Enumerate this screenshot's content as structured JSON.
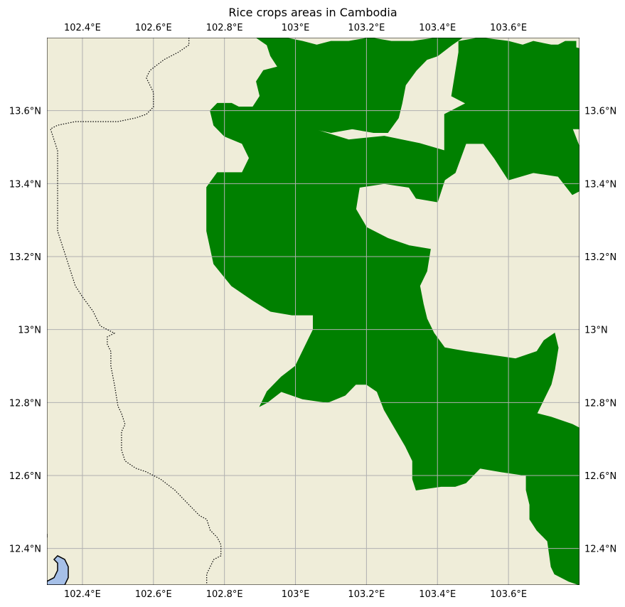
{
  "title": "Rice crops areas in Cambodia",
  "lon_range": [
    102.3,
    103.8
  ],
  "lat_range": [
    12.3,
    13.8
  ],
  "x_ticks": [
    {
      "value": 102.4,
      "label": "102.4°E"
    },
    {
      "value": 102.6,
      "label": "102.6°E"
    },
    {
      "value": 102.8,
      "label": "102.8°E"
    },
    {
      "value": 103.0,
      "label": "103°E"
    },
    {
      "value": 103.2,
      "label": "103.2°E"
    },
    {
      "value": 103.4,
      "label": "103.4°E"
    },
    {
      "value": 103.6,
      "label": "103.6°E"
    }
  ],
  "y_ticks": [
    {
      "value": 12.4,
      "label": "12.4°N"
    },
    {
      "value": 12.6,
      "label": "12.6°N"
    },
    {
      "value": 12.8,
      "label": "12.8°N"
    },
    {
      "value": 13.0,
      "label": "13°N"
    },
    {
      "value": 13.2,
      "label": "13.2°N"
    },
    {
      "value": 13.4,
      "label": "13.4°N"
    },
    {
      "value": 13.6,
      "label": "13.6°N"
    }
  ],
  "gridlines": true,
  "colors": {
    "land": "#efedd9",
    "rice": "#008000",
    "water": "#a6c0e8",
    "grid": "#b0b0b0",
    "border": "#000000"
  },
  "rice_polygons": [
    [
      [
        102.84,
        13.61
      ],
      [
        102.88,
        13.61
      ],
      [
        102.9,
        13.64
      ],
      [
        102.89,
        13.68
      ],
      [
        102.91,
        13.71
      ],
      [
        102.95,
        13.72
      ],
      [
        102.98,
        13.68
      ],
      [
        102.99,
        13.63
      ],
      [
        102.98,
        13.58
      ],
      [
        103.0,
        13.56
      ],
      [
        103.05,
        13.55
      ],
      [
        103.15,
        13.52
      ],
      [
        103.25,
        13.53
      ],
      [
        103.35,
        13.51
      ],
      [
        103.42,
        13.49
      ],
      [
        103.42,
        13.59
      ],
      [
        103.48,
        13.62
      ],
      [
        103.55,
        13.58
      ],
      [
        103.62,
        13.56
      ],
      [
        103.72,
        13.55
      ],
      [
        103.78,
        13.55
      ],
      [
        103.8,
        13.5
      ],
      [
        103.8,
        13.38
      ],
      [
        103.78,
        13.37
      ],
      [
        103.74,
        13.42
      ],
      [
        103.67,
        13.43
      ],
      [
        103.6,
        13.41
      ],
      [
        103.56,
        13.47
      ],
      [
        103.53,
        13.51
      ],
      [
        103.48,
        13.51
      ],
      [
        103.45,
        13.43
      ],
      [
        103.42,
        13.41
      ],
      [
        103.4,
        13.35
      ],
      [
        103.34,
        13.36
      ],
      [
        103.32,
        13.39
      ],
      [
        103.25,
        13.4
      ],
      [
        103.18,
        13.39
      ],
      [
        103.17,
        13.33
      ],
      [
        103.2,
        13.28
      ],
      [
        103.26,
        13.25
      ],
      [
        103.32,
        13.23
      ],
      [
        103.38,
        13.22
      ],
      [
        103.37,
        13.16
      ],
      [
        103.35,
        13.12
      ],
      [
        103.36,
        13.07
      ],
      [
        103.37,
        13.03
      ],
      [
        103.39,
        12.99
      ],
      [
        103.42,
        12.95
      ],
      [
        103.48,
        12.94
      ],
      [
        103.55,
        12.93
      ],
      [
        103.62,
        12.92
      ],
      [
        103.68,
        12.94
      ],
      [
        103.7,
        12.97
      ],
      [
        103.73,
        12.99
      ],
      [
        103.74,
        12.95
      ],
      [
        103.73,
        12.89
      ],
      [
        103.72,
        12.85
      ],
      [
        103.7,
        12.81
      ],
      [
        103.68,
        12.77
      ],
      [
        103.72,
        12.76
      ],
      [
        103.78,
        12.74
      ],
      [
        103.8,
        12.73
      ],
      [
        103.8,
        12.3
      ],
      [
        103.77,
        12.31
      ],
      [
        103.73,
        12.33
      ],
      [
        103.72,
        12.35
      ],
      [
        103.71,
        12.42
      ],
      [
        103.68,
        12.45
      ],
      [
        103.66,
        12.48
      ],
      [
        103.66,
        12.52
      ],
      [
        103.65,
        12.56
      ],
      [
        103.65,
        12.6
      ],
      [
        103.58,
        12.61
      ],
      [
        103.52,
        12.62
      ],
      [
        103.48,
        12.58
      ],
      [
        103.45,
        12.57
      ],
      [
        103.41,
        12.57
      ],
      [
        103.34,
        12.56
      ],
      [
        103.33,
        12.59
      ],
      [
        103.33,
        12.64
      ],
      [
        103.31,
        12.68
      ],
      [
        103.28,
        12.73
      ],
      [
        103.25,
        12.78
      ],
      [
        103.23,
        12.83
      ],
      [
        103.2,
        12.85
      ],
      [
        103.17,
        12.85
      ],
      [
        103.14,
        12.82
      ],
      [
        103.09,
        12.8
      ],
      [
        103.02,
        12.81
      ],
      [
        102.96,
        12.83
      ],
      [
        102.92,
        12.8
      ],
      [
        102.9,
        12.79
      ],
      [
        102.92,
        12.83
      ],
      [
        102.96,
        12.87
      ],
      [
        103.0,
        12.9
      ],
      [
        103.03,
        12.96
      ],
      [
        103.05,
        13.0
      ],
      [
        103.05,
        13.04
      ],
      [
        102.99,
        13.04
      ],
      [
        102.93,
        13.05
      ],
      [
        102.88,
        13.08
      ],
      [
        102.82,
        13.12
      ],
      [
        102.77,
        13.18
      ],
      [
        102.75,
        13.27
      ],
      [
        102.75,
        13.39
      ],
      [
        102.78,
        13.43
      ],
      [
        102.85,
        13.43
      ],
      [
        102.87,
        13.47
      ],
      [
        102.85,
        13.51
      ],
      [
        102.8,
        13.53
      ],
      [
        102.77,
        13.56
      ],
      [
        102.76,
        13.6
      ],
      [
        102.78,
        13.62
      ],
      [
        102.82,
        13.62
      ]
    ],
    [
      [
        102.89,
        13.8
      ],
      [
        102.92,
        13.78
      ],
      [
        102.93,
        13.75
      ],
      [
        102.95,
        13.72
      ],
      [
        102.98,
        13.68
      ],
      [
        102.99,
        13.63
      ],
      [
        102.98,
        13.58
      ],
      [
        103.0,
        13.56
      ],
      [
        103.05,
        13.55
      ],
      [
        103.1,
        13.54
      ],
      [
        103.16,
        13.55
      ],
      [
        103.22,
        13.54
      ],
      [
        103.26,
        13.54
      ],
      [
        103.29,
        13.58
      ],
      [
        103.3,
        13.62
      ],
      [
        103.31,
        13.67
      ],
      [
        103.34,
        13.71
      ],
      [
        103.37,
        13.74
      ],
      [
        103.4,
        13.75
      ],
      [
        103.44,
        13.78
      ],
      [
        103.47,
        13.8
      ],
      [
        103.4,
        13.8
      ],
      [
        103.33,
        13.79
      ],
      [
        103.27,
        13.79
      ],
      [
        103.21,
        13.8
      ],
      [
        103.15,
        13.79
      ],
      [
        103.1,
        13.79
      ],
      [
        103.06,
        13.78
      ],
      [
        103.02,
        13.79
      ],
      [
        102.97,
        13.8
      ]
    ],
    [
      [
        103.46,
        13.79
      ],
      [
        103.52,
        13.8
      ],
      [
        103.6,
        13.79
      ],
      [
        103.64,
        13.78
      ],
      [
        103.67,
        13.79
      ],
      [
        103.72,
        13.78
      ],
      [
        103.76,
        13.78
      ],
      [
        103.8,
        13.77
      ],
      [
        103.8,
        13.55
      ],
      [
        103.72,
        13.55
      ],
      [
        103.62,
        13.56
      ],
      [
        103.55,
        13.58
      ],
      [
        103.48,
        13.62
      ],
      [
        103.44,
        13.64
      ],
      [
        103.45,
        13.7
      ],
      [
        103.46,
        13.76
      ]
    ],
    [
      [
        103.74,
        13.78
      ],
      [
        103.76,
        13.79
      ],
      [
        103.79,
        13.79
      ],
      [
        103.79,
        13.77
      ],
      [
        103.76,
        13.77
      ]
    ]
  ],
  "border_line": [
    [
      102.7,
      13.8
    ],
    [
      102.7,
      13.78
    ],
    [
      102.67,
      13.76
    ],
    [
      102.63,
      13.74
    ],
    [
      102.59,
      13.71
    ],
    [
      102.58,
      13.69
    ],
    [
      102.6,
      13.65
    ],
    [
      102.6,
      13.61
    ],
    [
      102.58,
      13.59
    ],
    [
      102.55,
      13.58
    ],
    [
      102.5,
      13.57
    ],
    [
      102.44,
      13.57
    ],
    [
      102.38,
      13.57
    ],
    [
      102.33,
      13.56
    ],
    [
      102.31,
      13.55
    ],
    [
      102.32,
      13.52
    ],
    [
      102.33,
      13.49
    ],
    [
      102.33,
      13.38
    ],
    [
      102.33,
      13.27
    ],
    [
      102.34,
      13.24
    ],
    [
      102.36,
      13.18
    ],
    [
      102.38,
      13.12
    ],
    [
      102.4,
      13.09
    ],
    [
      102.43,
      13.05
    ],
    [
      102.45,
      13.01
    ],
    [
      102.49,
      12.99
    ],
    [
      102.47,
      12.98
    ],
    [
      102.47,
      12.96
    ],
    [
      102.48,
      12.94
    ],
    [
      102.48,
      12.9
    ],
    [
      102.49,
      12.85
    ],
    [
      102.5,
      12.79
    ],
    [
      102.51,
      12.77
    ],
    [
      102.52,
      12.74
    ],
    [
      102.51,
      12.72
    ],
    [
      102.51,
      12.67
    ],
    [
      102.52,
      12.64
    ],
    [
      102.55,
      12.62
    ],
    [
      102.58,
      12.61
    ],
    [
      102.62,
      12.59
    ],
    [
      102.66,
      12.56
    ],
    [
      102.7,
      12.52
    ],
    [
      102.73,
      12.49
    ],
    [
      102.75,
      12.48
    ],
    [
      102.76,
      12.45
    ],
    [
      102.78,
      12.43
    ],
    [
      102.79,
      12.41
    ],
    [
      102.79,
      12.38
    ],
    [
      102.77,
      12.37
    ],
    [
      102.76,
      12.35
    ],
    [
      102.75,
      12.33
    ],
    [
      102.75,
      12.3
    ]
  ],
  "coast_line": [
    [
      102.3,
      12.43
    ],
    [
      102.3,
      12.44
    ]
  ],
  "water_polygon": [
    [
      102.3,
      12.3
    ],
    [
      102.3,
      12.31
    ],
    [
      102.32,
      12.32
    ],
    [
      102.33,
      12.34
    ],
    [
      102.33,
      12.36
    ],
    [
      102.32,
      12.37
    ],
    [
      102.33,
      12.38
    ],
    [
      102.35,
      12.37
    ],
    [
      102.36,
      12.35
    ],
    [
      102.36,
      12.32
    ],
    [
      102.35,
      12.3
    ]
  ]
}
